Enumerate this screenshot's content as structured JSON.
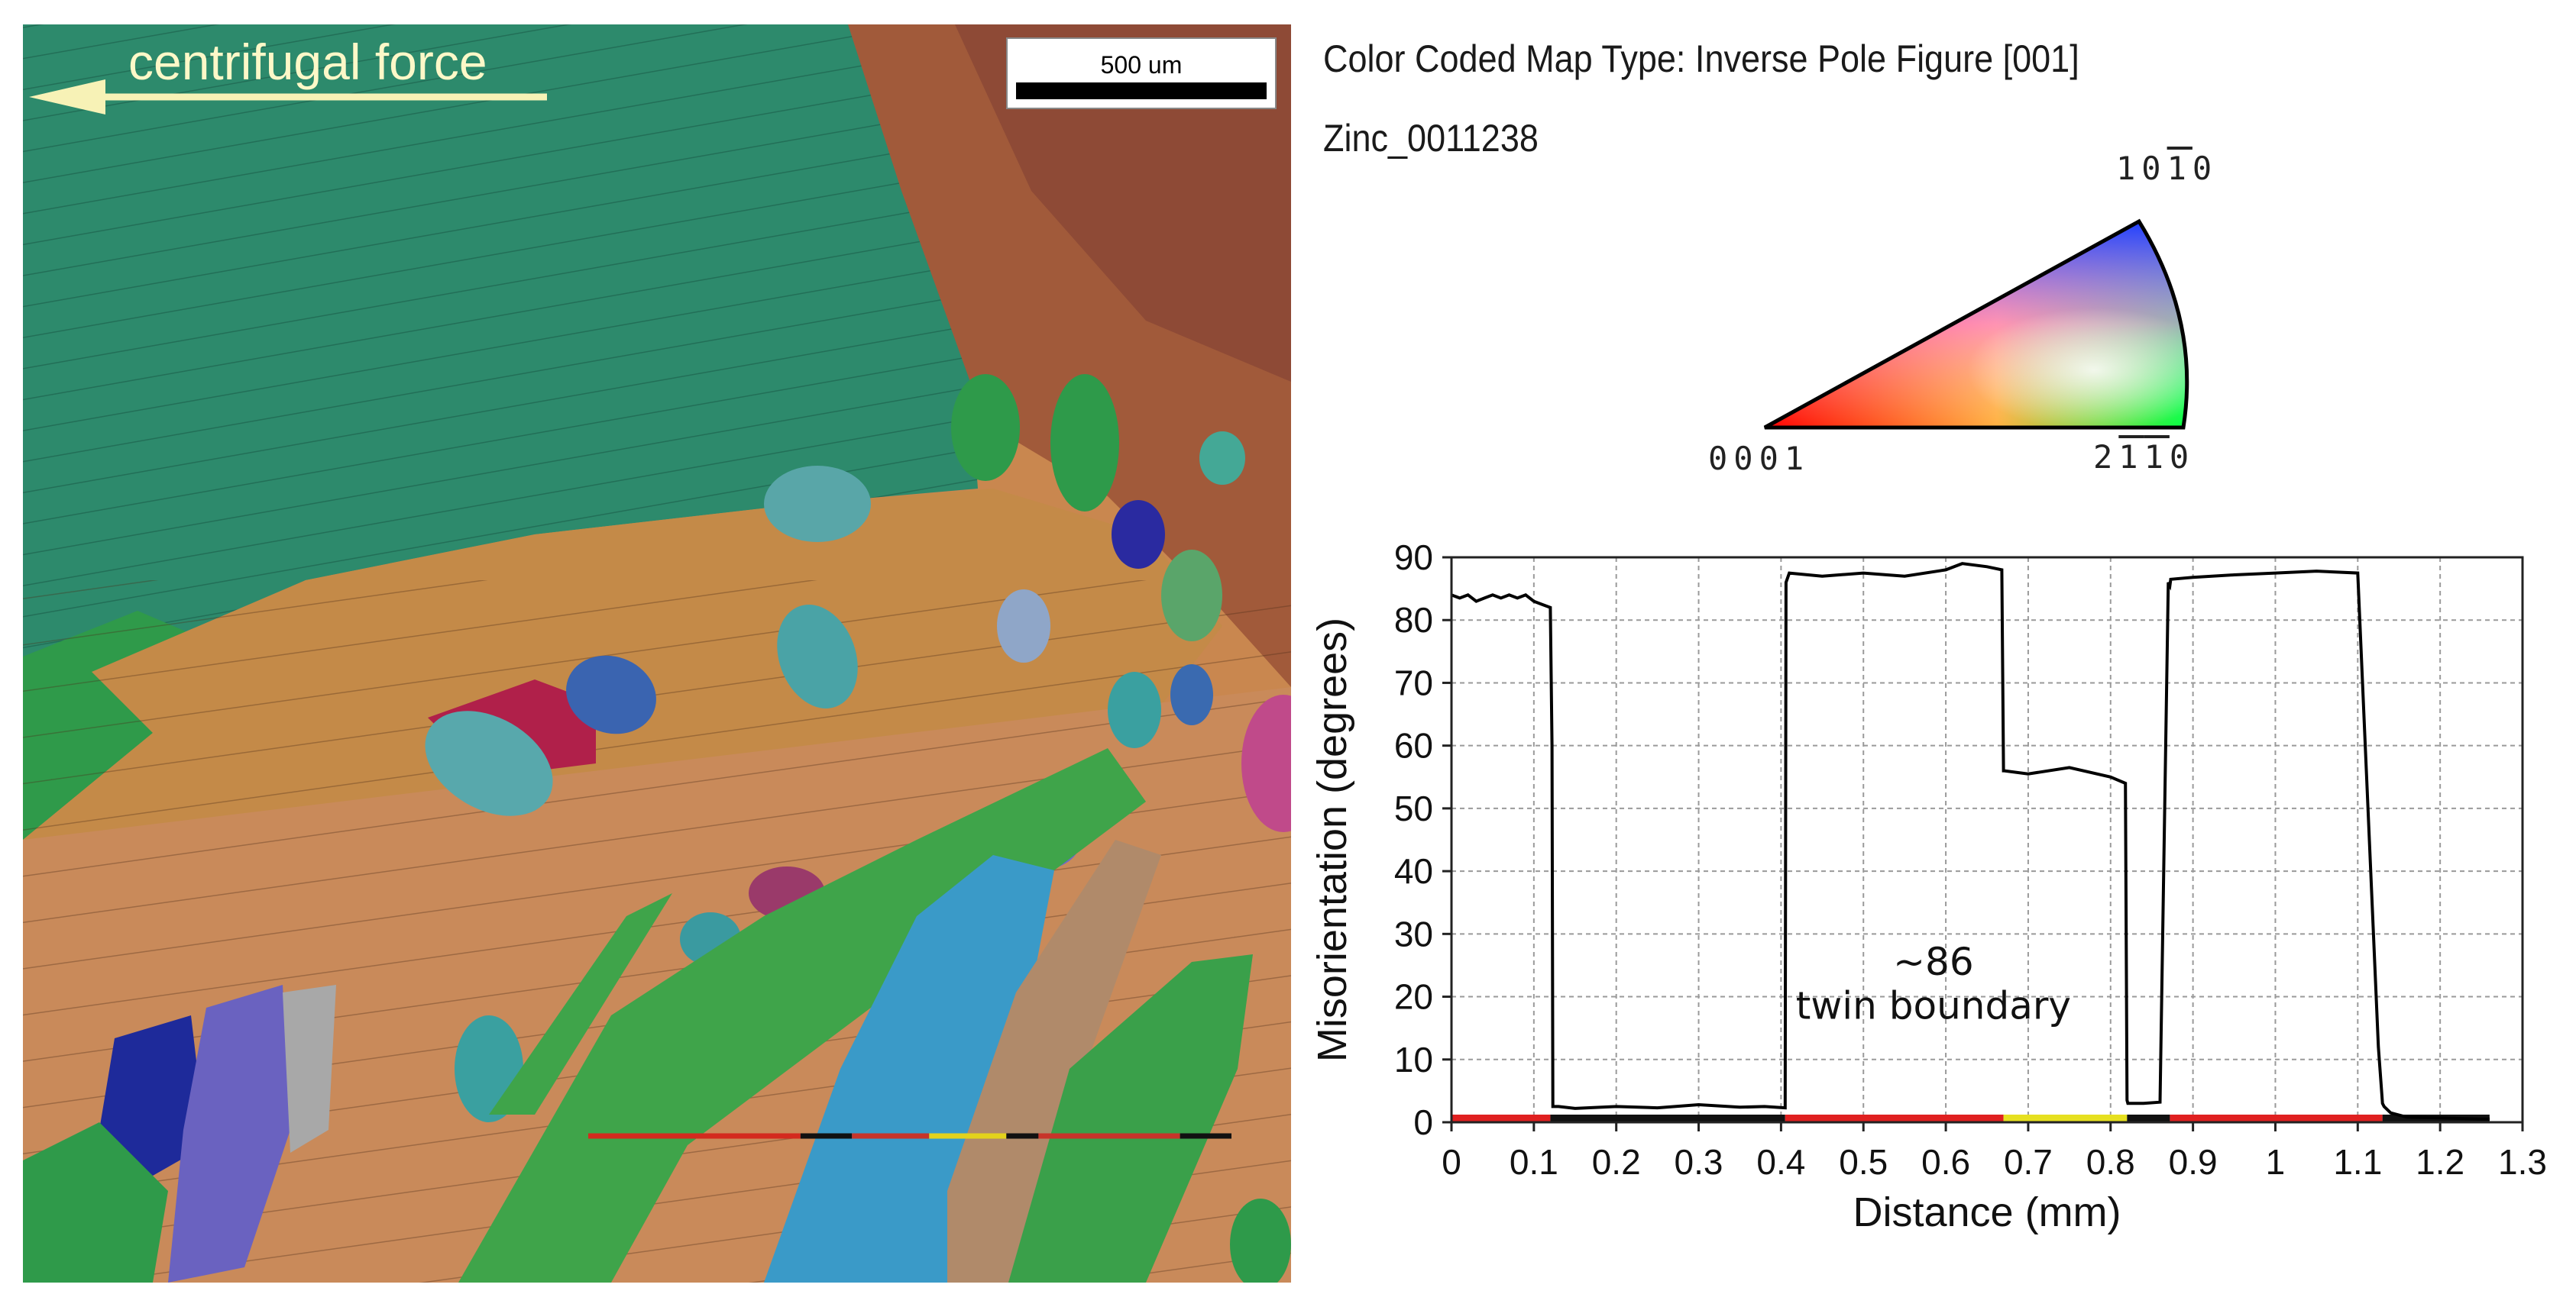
{
  "header": {
    "map_type": "Color Coded Map Type: Inverse Pole Figure [001]",
    "sample": "Zinc_0011238"
  },
  "micrograph": {
    "arrow_label": "centrifugal force",
    "scale_bar_label": "500 um",
    "line_scan_segments": [
      {
        "color": "#d42a1e",
        "fraction": 0.33
      },
      {
        "color": "#111111",
        "fraction": 0.08
      },
      {
        "color": "#c7342a",
        "fraction": 0.12
      },
      {
        "color": "#e3d21c",
        "fraction": 0.12
      },
      {
        "color": "#111111",
        "fraction": 0.05
      },
      {
        "color": "#c7342a",
        "fraction": 0.22
      },
      {
        "color": "#111111",
        "fraction": 0.08
      }
    ]
  },
  "ipf_legend": {
    "top_right_label": [
      "1",
      "0",
      "1",
      "0"
    ],
    "bottom_left_label": "0001",
    "bottom_right_label": [
      "2",
      "1",
      "1",
      "0"
    ],
    "overbar_digits": "third digit (1) on top label; second and third digits on bottom-right label"
  },
  "chart_data": {
    "type": "line",
    "xlabel": "Distance (mm)",
    "ylabel": "Misorientation (degrees)",
    "xlim": [
      0,
      1.3
    ],
    "ylim": [
      0,
      90
    ],
    "xticks": [
      "0",
      "0.1",
      "0.2",
      "0.3",
      "0.4",
      "0.5",
      "0.6",
      "0.7",
      "0.8",
      "0.9",
      "1",
      "1.1",
      "1.2",
      "1.3"
    ],
    "yticks": [
      "0",
      "10",
      "20",
      "30",
      "40",
      "50",
      "60",
      "70",
      "80",
      "90"
    ],
    "grid": true,
    "series": [
      {
        "color": "#000000",
        "x": [
          0,
          0.01,
          0.02,
          0.03,
          0.04,
          0.05,
          0.06,
          0.07,
          0.08,
          0.09,
          0.1,
          0.11,
          0.12,
          0.122,
          0.123,
          0.13,
          0.15,
          0.2,
          0.25,
          0.3,
          0.35,
          0.38,
          0.405,
          0.406,
          0.41,
          0.45,
          0.5,
          0.55,
          0.6,
          0.62,
          0.65,
          0.668,
          0.67,
          0.671,
          0.7,
          0.75,
          0.8,
          0.818,
          0.82,
          0.821,
          0.84,
          0.86,
          0.87,
          0.872,
          0.873,
          0.9,
          0.95,
          1,
          1.05,
          1.1,
          1.125,
          1.13,
          1.132,
          1.14,
          1.16,
          1.2,
          1.25,
          1.26
        ],
        "y": [
          84,
          83.5,
          84,
          83,
          83.5,
          84,
          83.5,
          84,
          83.5,
          84,
          83,
          82.5,
          82,
          60,
          2.5,
          2.5,
          2.2,
          2.5,
          2.3,
          2.8,
          2.4,
          2.5,
          2.3,
          86,
          87.5,
          87,
          87.5,
          87,
          88,
          89,
          88.5,
          88,
          56,
          56,
          55.5,
          56.5,
          55,
          54,
          3.5,
          3,
          3,
          3.2,
          86,
          85.5,
          86.5,
          86.8,
          87.2,
          87.5,
          87.8,
          87.5,
          12,
          3,
          2.5,
          1.5,
          0.8,
          0.7,
          0.5,
          0.5
        ]
      }
    ],
    "baseline_bands": [
      {
        "x0": 0,
        "x1": 0.12,
        "color": "#e02020"
      },
      {
        "x0": 0.12,
        "x1": 0.405,
        "color": "#111111"
      },
      {
        "x0": 0.405,
        "x1": 0.67,
        "color": "#e02020"
      },
      {
        "x0": 0.67,
        "x1": 0.82,
        "color": "#e6e020"
      },
      {
        "x0": 0.82,
        "x1": 0.872,
        "color": "#111111"
      },
      {
        "x0": 0.872,
        "x1": 1.13,
        "color": "#e02020"
      },
      {
        "x0": 1.13,
        "x1": 1.26,
        "color": "#111111"
      }
    ],
    "annotations": [
      {
        "text": "~86",
        "x": 0.585,
        "y": 23.5
      },
      {
        "text": "twin boundary",
        "x": 0.585,
        "y": 16.5
      }
    ]
  }
}
